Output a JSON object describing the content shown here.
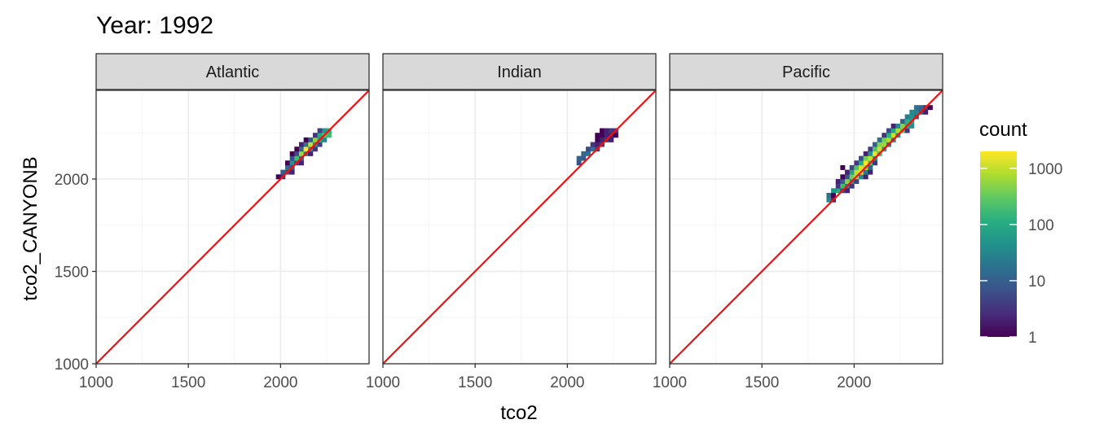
{
  "chart_data": {
    "type": "heatmap",
    "title": "Year: 1992",
    "xlabel": "tco2",
    "ylabel": "tco2_CANYONB",
    "xlim": [
      1000,
      2480
    ],
    "ylim": [
      1000,
      2480
    ],
    "x_ticks": [
      1000,
      1500,
      2000
    ],
    "x_tick_labels": [
      "1000",
      "1500",
      "2000"
    ],
    "y_ticks": [
      1000,
      1500,
      2000
    ],
    "y_tick_labels": [
      "1000",
      "1500",
      "2000"
    ],
    "grid": true,
    "reference_line": {
      "slope": 1,
      "intercept": 0,
      "color": "#ee1111"
    },
    "bin_width": 25,
    "legend": {
      "title": "count",
      "position": "right",
      "scale": "log10",
      "colormap": "viridis",
      "ticks": [
        1,
        10,
        100,
        1000
      ],
      "tick_labels": [
        "1",
        "10",
        "100",
        "1000"
      ]
    },
    "panels": [
      {
        "name": "Atlantic",
        "bins": [
          [
            1975,
            2000,
            1
          ],
          [
            2000,
            2000,
            3
          ],
          [
            2025,
            2025,
            5
          ],
          [
            2000,
            2025,
            8
          ],
          [
            2050,
            2025,
            2
          ],
          [
            2025,
            2050,
            12
          ],
          [
            2050,
            2050,
            6
          ],
          [
            2025,
            2075,
            1
          ],
          [
            2050,
            2075,
            40
          ],
          [
            2075,
            2075,
            4
          ],
          [
            2100,
            2075,
            2
          ],
          [
            2050,
            2100,
            6
          ],
          [
            2075,
            2100,
            150
          ],
          [
            2100,
            2100,
            10
          ],
          [
            2050,
            2125,
            1
          ],
          [
            2075,
            2125,
            5
          ],
          [
            2100,
            2125,
            500
          ],
          [
            2125,
            2125,
            20
          ],
          [
            2150,
            2125,
            2
          ],
          [
            2075,
            2150,
            1
          ],
          [
            2100,
            2150,
            12
          ],
          [
            2125,
            2150,
            1500
          ],
          [
            2150,
            2150,
            30
          ],
          [
            2175,
            2150,
            3
          ],
          [
            2100,
            2175,
            2
          ],
          [
            2125,
            2175,
            15
          ],
          [
            2150,
            2175,
            800
          ],
          [
            2175,
            2175,
            40
          ],
          [
            2200,
            2175,
            4
          ],
          [
            2125,
            2200,
            1
          ],
          [
            2150,
            2200,
            8
          ],
          [
            2175,
            2200,
            400
          ],
          [
            2200,
            2200,
            60
          ],
          [
            2225,
            2200,
            30
          ],
          [
            2175,
            2225,
            3
          ],
          [
            2200,
            2225,
            80
          ],
          [
            2225,
            2225,
            200
          ],
          [
            2250,
            2225,
            150
          ],
          [
            2200,
            2250,
            4
          ],
          [
            2225,
            2250,
            50
          ],
          [
            2250,
            2250,
            100
          ]
        ]
      },
      {
        "name": "Indian",
        "bins": [
          [
            2050,
            2075,
            6
          ],
          [
            2050,
            2100,
            10
          ],
          [
            2075,
            2100,
            8
          ],
          [
            2075,
            2125,
            12
          ],
          [
            2100,
            2125,
            15
          ],
          [
            2100,
            2150,
            5
          ],
          [
            2125,
            2150,
            15
          ],
          [
            2150,
            2150,
            4
          ],
          [
            2125,
            2175,
            3
          ],
          [
            2150,
            2175,
            2
          ],
          [
            2175,
            2175,
            3
          ],
          [
            2150,
            2200,
            1
          ],
          [
            2175,
            2200,
            2
          ],
          [
            2200,
            2200,
            3
          ],
          [
            2225,
            2200,
            2
          ],
          [
            2150,
            2225,
            1
          ],
          [
            2175,
            2225,
            1
          ],
          [
            2200,
            2225,
            2
          ],
          [
            2225,
            2225,
            2
          ],
          [
            2250,
            2225,
            1
          ],
          [
            2175,
            2250,
            1
          ],
          [
            2200,
            2250,
            2
          ],
          [
            2225,
            2250,
            3
          ],
          [
            2250,
            2250,
            3
          ]
        ]
      },
      {
        "name": "Pacific",
        "bins": [
          [
            1850,
            1875,
            30
          ],
          [
            1875,
            1875,
            2
          ],
          [
            1850,
            1900,
            15
          ],
          [
            1875,
            1900,
            1
          ],
          [
            1875,
            1925,
            40
          ],
          [
            1900,
            1925,
            80
          ],
          [
            1925,
            1925,
            5
          ],
          [
            1950,
            1925,
            2
          ],
          [
            1900,
            1950,
            3
          ],
          [
            1925,
            1950,
            150
          ],
          [
            1950,
            1950,
            20
          ],
          [
            1975,
            1950,
            3
          ],
          [
            1900,
            1975,
            2
          ],
          [
            1925,
            1975,
            8
          ],
          [
            1950,
            1975,
            400
          ],
          [
            1975,
            1975,
            40
          ],
          [
            2000,
            1975,
            4
          ],
          [
            1925,
            2000,
            1
          ],
          [
            1950,
            2000,
            6
          ],
          [
            1975,
            2000,
            300
          ],
          [
            2000,
            2000,
            600
          ],
          [
            2025,
            2000,
            30
          ],
          [
            2050,
            2000,
            2
          ],
          [
            1950,
            2025,
            2
          ],
          [
            1975,
            2025,
            60
          ],
          [
            2000,
            2025,
            800
          ],
          [
            2025,
            2025,
            1200
          ],
          [
            2050,
            2025,
            20
          ],
          [
            2075,
            2025,
            2
          ],
          [
            1925,
            2050,
            1
          ],
          [
            1975,
            2050,
            5
          ],
          [
            2000,
            2050,
            200
          ],
          [
            2025,
            2050,
            1000
          ],
          [
            2050,
            2050,
            500
          ],
          [
            2075,
            2050,
            10
          ],
          [
            2000,
            2075,
            3
          ],
          [
            2025,
            2075,
            80
          ],
          [
            2050,
            2075,
            1500
          ],
          [
            2075,
            2075,
            150
          ],
          [
            2100,
            2075,
            3
          ],
          [
            2025,
            2100,
            5
          ],
          [
            2050,
            2100,
            300
          ],
          [
            2075,
            2100,
            800
          ],
          [
            2100,
            2100,
            40
          ],
          [
            2050,
            2125,
            2
          ],
          [
            2075,
            2125,
            40
          ],
          [
            2100,
            2125,
            1200
          ],
          [
            2125,
            2125,
            150
          ],
          [
            2075,
            2150,
            4
          ],
          [
            2100,
            2150,
            200
          ],
          [
            2125,
            2150,
            900
          ],
          [
            2150,
            2150,
            60
          ],
          [
            2100,
            2175,
            10
          ],
          [
            2125,
            2175,
            400
          ],
          [
            2150,
            2175,
            500
          ],
          [
            2175,
            2175,
            20
          ],
          [
            2125,
            2200,
            15
          ],
          [
            2150,
            2200,
            300
          ],
          [
            2175,
            2200,
            600
          ],
          [
            2200,
            2200,
            30
          ],
          [
            2150,
            2225,
            3
          ],
          [
            2175,
            2225,
            100
          ],
          [
            2200,
            2225,
            800
          ],
          [
            2225,
            2225,
            40
          ],
          [
            2175,
            2250,
            5
          ],
          [
            2200,
            2250,
            80
          ],
          [
            2225,
            2250,
            600
          ],
          [
            2250,
            2250,
            200
          ],
          [
            2275,
            2250,
            3
          ],
          [
            2200,
            2275,
            2
          ],
          [
            2225,
            2275,
            30
          ],
          [
            2250,
            2275,
            400
          ],
          [
            2275,
            2275,
            80
          ],
          [
            2300,
            2275,
            40
          ],
          [
            2250,
            2300,
            8
          ],
          [
            2275,
            2300,
            100
          ],
          [
            2300,
            2300,
            60
          ],
          [
            2275,
            2325,
            20
          ],
          [
            2300,
            2325,
            40
          ],
          [
            2325,
            2325,
            10
          ],
          [
            2300,
            2350,
            30
          ],
          [
            2325,
            2350,
            25
          ],
          [
            2350,
            2350,
            8
          ],
          [
            2375,
            2350,
            2
          ],
          [
            2325,
            2375,
            15
          ],
          [
            2350,
            2375,
            12
          ],
          [
            2375,
            2375,
            4
          ],
          [
            2400,
            2375,
            1
          ]
        ]
      }
    ]
  },
  "colors": {
    "strip_fill": "#d9d9d9",
    "panel_border": "#333333",
    "grid_major": "#ebebeb",
    "grid_minor": "#f5f5f5",
    "ref_line": "#ee1111"
  }
}
